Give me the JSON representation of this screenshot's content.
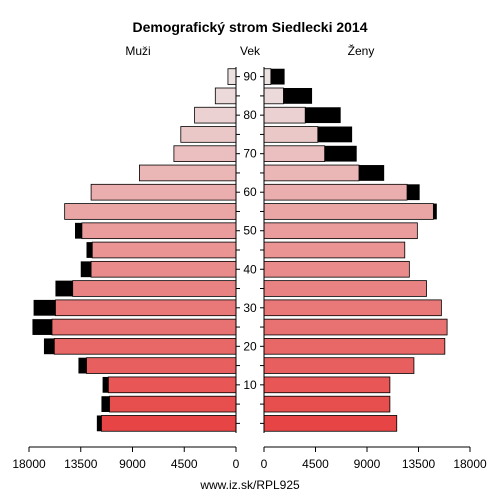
{
  "chart_data": {
    "type": "bar",
    "title": "Demografický strom Siedlecki 2014",
    "left_label": "Muži",
    "center_label": "Vek",
    "right_label": "Ženy",
    "footer": "www.iz.sk/RPL925",
    "age_groups": [
      "0-4",
      "5-9",
      "10-14",
      "15-19",
      "20-24",
      "25-29",
      "30-34",
      "35-39",
      "40-44",
      "45-49",
      "50-54",
      "55-59",
      "60-64",
      "65-69",
      "70-74",
      "75-79",
      "80-84",
      "85-89",
      "90+"
    ],
    "age_ticks": [
      "10",
      "20",
      "30",
      "40",
      "50",
      "60",
      "70",
      "80",
      "90"
    ],
    "x_ticks_left": [
      "18000",
      "13500",
      "9000",
      "4500",
      "0"
    ],
    "x_ticks_right": [
      "0",
      "4500",
      "9000",
      "13500",
      "18000"
    ],
    "xlim": [
      0,
      18000
    ],
    "series": [
      {
        "name": "Muži",
        "base": [
          11700,
          11000,
          11100,
          13000,
          15800,
          16000,
          15700,
          14200,
          12600,
          12500,
          13400,
          14900,
          12600,
          8400,
          5400,
          4800,
          3600,
          1800,
          700
        ],
        "excess": [
          400,
          700,
          500,
          700,
          900,
          1700,
          1900,
          1500,
          900,
          500,
          600,
          0,
          0,
          0,
          0,
          0,
          0,
          0,
          0
        ]
      },
      {
        "name": "Ženy",
        "base": [
          11600,
          11000,
          11000,
          13100,
          15800,
          16000,
          15500,
          14200,
          12700,
          12300,
          13400,
          14800,
          12500,
          8300,
          5300,
          4700,
          3600,
          1700,
          600
        ],
        "excess": [
          0,
          0,
          0,
          0,
          0,
          0,
          0,
          0,
          0,
          0,
          0,
          300,
          1100,
          2200,
          2800,
          3000,
          3100,
          2500,
          1200
        ]
      }
    ],
    "colors": {
      "excess": "#000000",
      "stroke": "#000000"
    }
  }
}
